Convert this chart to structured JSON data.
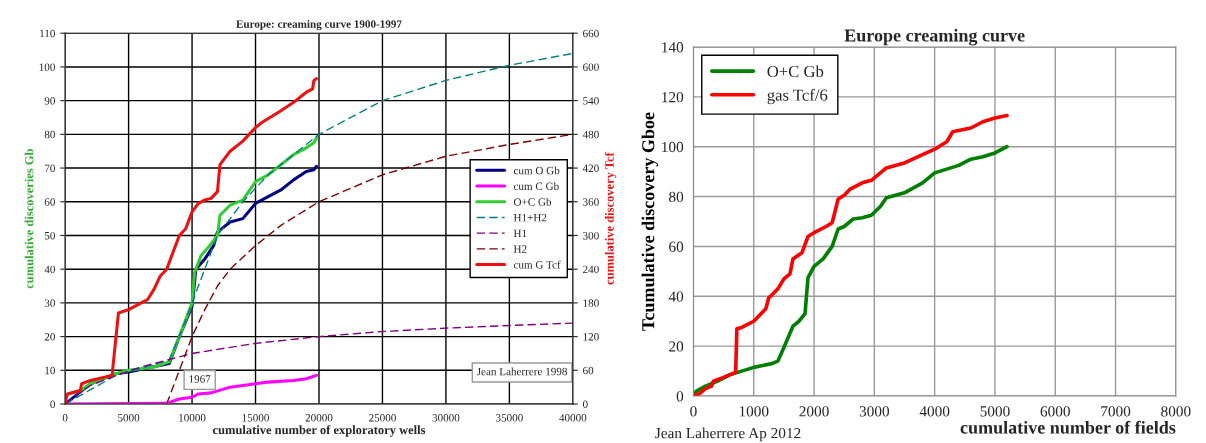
{
  "chart_data": [
    {
      "type": "line",
      "title": "Europe: creaming curve 1900-1997",
      "xlabel": "cumulative number of exploratory wells",
      "ylabel": "cumulative discoveries Gb",
      "y2label": "cumulative discovery Tcf",
      "xlim": [
        0,
        40000
      ],
      "xticks": [
        0,
        5000,
        10000,
        15000,
        20000,
        25000,
        30000,
        35000,
        40000
      ],
      "ylim": [
        0,
        110
      ],
      "yticks": [
        0,
        10,
        20,
        30,
        40,
        50,
        60,
        70,
        80,
        90,
        100,
        110
      ],
      "y2lim": [
        0,
        660
      ],
      "y2ticks": [
        0,
        60,
        120,
        180,
        240,
        300,
        360,
        420,
        480,
        540,
        600,
        660
      ],
      "grid": true,
      "legend": "center right",
      "annotations": [
        "1967",
        "Jean Laherrere 1998"
      ],
      "series": [
        {
          "name": "cum O Gb",
          "color": "#000080",
          "x": [
            0,
            1000,
            2000,
            4000,
            5000,
            8200,
            9000,
            10000,
            10300,
            11000,
            11700,
            12000,
            13000,
            14000,
            15000,
            16000,
            17000,
            18000,
            19000,
            19600,
            19800
          ],
          "values": [
            0,
            3,
            6,
            9,
            9.5,
            12,
            20,
            29,
            40,
            43,
            47,
            51,
            54,
            55,
            59.5,
            61.5,
            63.5,
            66.5,
            69,
            69.5,
            70.5
          ]
        },
        {
          "name": "cum C Gb",
          "color": "#ff00ff",
          "x": [
            0,
            8000,
            9000,
            10000,
            10500,
            11500,
            13000,
            15000,
            16000,
            18000,
            19000,
            19800
          ],
          "values": [
            0,
            0.2,
            1.5,
            2,
            3,
            3.3,
            5,
            6,
            6.5,
            7,
            7.5,
            8.5
          ]
        },
        {
          "name": "O+C Gb",
          "color": "#33cc33",
          "x": [
            0,
            200,
            1200,
            2000,
            3000,
            4000,
            5000,
            7000,
            8200,
            9000,
            10000,
            10200,
            10700,
            11500,
            12000,
            12200,
            13000,
            14000,
            15000,
            16000,
            17000,
            18000,
            19000,
            19600,
            19800
          ],
          "values": [
            2,
            3,
            4,
            6,
            7.5,
            9,
            10,
            11,
            12.5,
            20,
            30,
            39,
            44,
            47.5,
            50,
            56,
            59,
            60.5,
            66,
            68,
            71,
            74,
            76,
            77.5,
            79
          ]
        },
        {
          "name": "H1+H2",
          "color": "#008080",
          "line_style": "dashed",
          "x": [
            0,
            4000,
            8200,
            9000,
            10000,
            12000,
            14000,
            16000,
            18000,
            20000,
            25000,
            30000,
            35000,
            40000
          ],
          "values": [
            0,
            8.5,
            13,
            20,
            30,
            50,
            60,
            68,
            74,
            80,
            90,
            96,
            100.5,
            104
          ]
        },
        {
          "name": "H1",
          "color": "#800080",
          "line_style": "dashed",
          "x": [
            0,
            1000,
            2000,
            4000,
            6000,
            8000,
            10000,
            15000,
            20000,
            25000,
            30000,
            35000,
            40000
          ],
          "values": [
            0,
            3,
            5.5,
            8.5,
            11,
            13,
            15,
            18,
            20,
            21.5,
            22.5,
            23.3,
            24
          ]
        },
        {
          "name": "H2",
          "color": "#800000",
          "line_style": "dashed",
          "x": [
            8000,
            9000,
            10000,
            11000,
            12000,
            13000,
            15000,
            17000,
            20000,
            25000,
            30000,
            35000,
            40000
          ],
          "values": [
            0,
            10,
            20,
            28,
            35,
            40,
            47,
            53,
            60,
            68,
            73.5,
            77,
            80
          ]
        },
        {
          "name": "cum G Tcf",
          "color": "#ee1111",
          "axis": "y2",
          "x": [
            0,
            100,
            200,
            1200,
            1300,
            2000,
            3700,
            4200,
            5000,
            6000,
            6500,
            7000,
            7500,
            8000,
            8500,
            9000,
            9500,
            10000,
            10500,
            11000,
            11500,
            12000,
            12200,
            13000,
            14000,
            15000,
            15500,
            17000,
            18000,
            19000,
            19500,
            19600,
            19800
          ],
          "values": [
            0,
            12,
            18,
            24,
            36,
            42,
            51,
            162,
            168,
            180,
            186,
            204,
            228,
            240,
            270,
            300,
            312,
            342,
            357,
            363,
            366,
            378,
            426,
            450,
            468,
            492,
            501,
            522,
            537,
            555,
            561,
            576,
            579
          ]
        }
      ]
    },
    {
      "type": "line",
      "title": "Europe creaming curve",
      "xlabel": "cumulative number of fields",
      "ylabel": "Tcumulative discovery Gboe",
      "xlim": [
        0,
        8000
      ],
      "xticks": [
        0,
        1000,
        2000,
        3000,
        4000,
        5000,
        6000,
        7000,
        8000
      ],
      "ylim": [
        0,
        140
      ],
      "yticks": [
        0,
        20,
        40,
        60,
        80,
        100,
        120,
        140
      ],
      "grid": true,
      "legend": "upper left",
      "annotations": [
        "Jean Laherrere Ap 2012"
      ],
      "series": [
        {
          "name": "O+C Gb",
          "color": "#008000",
          "x": [
            0,
            50,
            200,
            400,
            600,
            800,
            1000,
            1300,
            1400,
            1500,
            1650,
            1750,
            1850,
            1900,
            2000,
            2150,
            2300,
            2400,
            2500,
            2650,
            2800,
            2950,
            3100,
            3200,
            3500,
            3800,
            4000,
            4400,
            4600,
            4800,
            5000,
            5200
          ],
          "values": [
            0,
            2,
            4,
            6,
            8.5,
            10,
            11.5,
            13,
            14,
            19.5,
            28,
            30,
            33,
            47.5,
            52,
            55,
            60,
            67,
            68,
            71,
            71.5,
            72.5,
            76,
            79.5,
            81.5,
            85.5,
            89.5,
            92.5,
            95,
            96,
            97.5,
            100
          ]
        },
        {
          "name": "gas Tcf/6",
          "color": "#ff0000",
          "x": [
            0,
            100,
            200,
            300,
            330,
            500,
            700,
            720,
            800,
            1000,
            1100,
            1200,
            1250,
            1300,
            1400,
            1500,
            1600,
            1650,
            1800,
            1900,
            2000,
            2200,
            2300,
            2400,
            2500,
            2600,
            2800,
            2950,
            3200,
            3500,
            4000,
            4200,
            4300,
            4600,
            4800,
            5000,
            5200
          ],
          "values": [
            0,
            1,
            3,
            4,
            6,
            7.5,
            9.5,
            27,
            27.5,
            30,
            32.5,
            35,
            39.5,
            40.5,
            43,
            47,
            49,
            55,
            57.5,
            64,
            65.5,
            68,
            69.5,
            79,
            80.5,
            83,
            85.5,
            86.5,
            91.5,
            93.5,
            99,
            102,
            106,
            107.5,
            110,
            111.5,
            112.5
          ]
        }
      ]
    }
  ]
}
